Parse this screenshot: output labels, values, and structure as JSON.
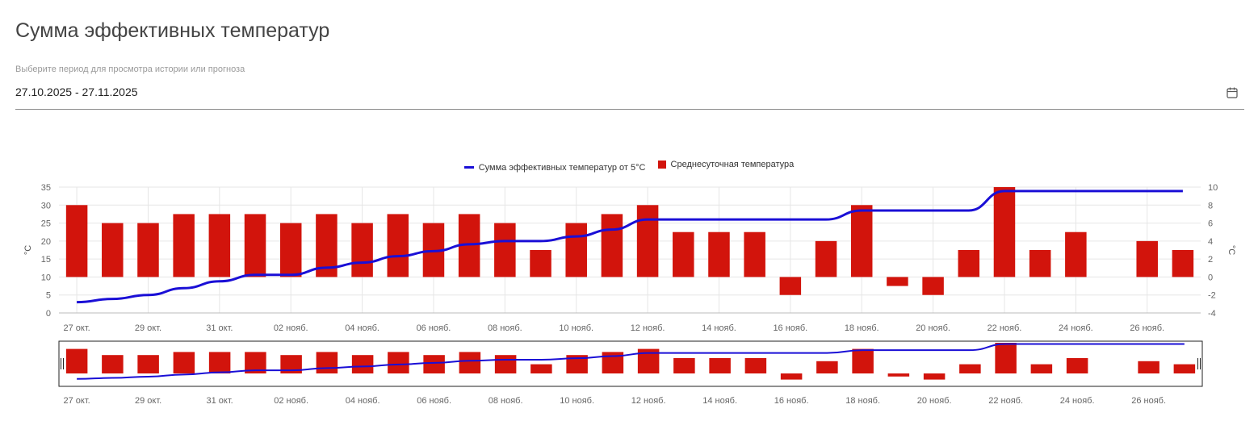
{
  "page": {
    "title": "Сумма эффективных температур",
    "period_label": "Выберите период для просмотра истории или прогноза",
    "period_value": "27.10.2025 - 27.11.2025"
  },
  "colors": {
    "bar": "#d2140c",
    "line": "#1a0fd6",
    "grid": "#e6e6e6"
  },
  "chart_data": {
    "type": "bar",
    "legend_placement": "top-center",
    "grid": true,
    "x_tick_labels": [
      "27 окт.",
      "29 окт.",
      "31 окт.",
      "02 нояб.",
      "04 нояб.",
      "06 нояб.",
      "08 нояб.",
      "10 нояб.",
      "12 нояб.",
      "14 нояб.",
      "16 нояб.",
      "18 нояб.",
      "20 нояб.",
      "22 нояб.",
      "24 нояб.",
      "26 нояб."
    ],
    "categories": [
      "27 окт.",
      "28 окт.",
      "29 окт.",
      "30 окт.",
      "31 окт.",
      "01 нояб.",
      "02 нояб.",
      "03 нояб.",
      "04 нояб.",
      "05 нояб.",
      "06 нояб.",
      "07 нояб.",
      "08 нояб.",
      "09 нояб.",
      "10 нояб.",
      "11 нояб.",
      "12 нояб.",
      "13 нояб.",
      "14 нояб.",
      "15 нояб.",
      "16 нояб.",
      "17 нояб.",
      "18 нояб.",
      "19 нояб.",
      "20 нояб.",
      "21 нояб.",
      "22 нояб.",
      "23 нояб.",
      "24 нояб.",
      "25 нояб.",
      "26 нояб.",
      "27 нояб."
    ],
    "y_left": {
      "label": "°C",
      "ticks": [
        0,
        5,
        10,
        15,
        20,
        25,
        30,
        35
      ],
      "ylim": [
        0,
        35
      ]
    },
    "y_right": {
      "label": "°C",
      "ticks": [
        -4,
        -2,
        0,
        2,
        4,
        6,
        8,
        10
      ],
      "ylim": [
        -4,
        10
      ]
    },
    "series": [
      {
        "name": "Среднесуточная температура",
        "type": "bar",
        "axis": "right",
        "values": [
          8,
          6,
          6,
          7,
          7,
          7,
          6,
          7,
          6,
          7,
          6,
          7,
          6,
          3,
          6,
          7,
          8,
          5,
          5,
          5,
          -2,
          4,
          8,
          -1,
          -2,
          3,
          10,
          3,
          5,
          0,
          4,
          3
        ]
      },
      {
        "name": "Сумма эффективных температур от 5°C",
        "type": "line",
        "axis": "left",
        "values": [
          3,
          3.9,
          5,
          6.9,
          8.8,
          10.6,
          10.6,
          12.6,
          14,
          15.8,
          17.2,
          19.1,
          20,
          20,
          21.3,
          23.2,
          26,
          26,
          26,
          26,
          26,
          26,
          28.5,
          28.5,
          28.5,
          28.5,
          33.9,
          33.9,
          33.9,
          33.9,
          33.9,
          33.9
        ]
      }
    ]
  },
  "navigator": {
    "visible": true
  }
}
